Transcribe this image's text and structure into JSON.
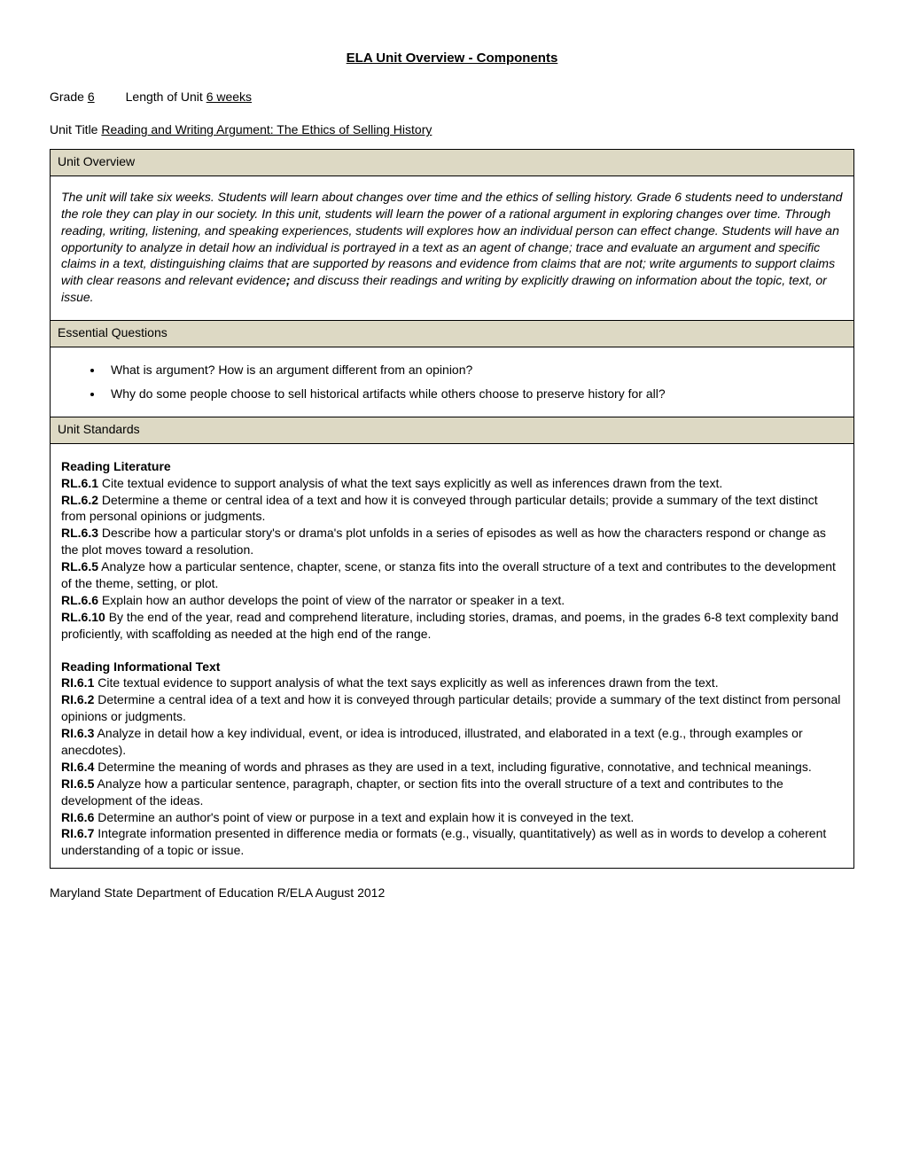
{
  "page_title": "ELA Unit Overview - Components",
  "meta": {
    "grade_label": "Grade",
    "grade_value": "6",
    "length_label": "Length of Unit",
    "length_value": "6 weeks",
    "unit_title_label": "Unit Title",
    "unit_title_value": "Reading and Writing Argument: The Ethics of Selling History"
  },
  "sections": {
    "overview_header": "Unit Overview",
    "overview_body_pre": "The unit will take six weeks. Students will learn about changes over time and the ethics of selling history.  Grade 6 students need to understand the role they can play in our society. In this unit, students will learn the power of a rational argument in exploring changes over time. Through reading, writing, listening, and speaking experiences, students will explores how an individual person can effect change.  Students will have an opportunity to analyze in detail how an individual is portrayed in a text as an agent of change; trace and evaluate an argument and specific claims in a text, distinguishing claims that are supported by reasons and evidence from claims that are not; write arguments to support claims with clear reasons and relevant evidence",
    "overview_body_bold": ";",
    "overview_body_post": " and discuss their readings and writing by explicitly drawing on information about the topic, text, or issue.",
    "eq_header": "Essential Questions",
    "eq_items": [
      "What is argument? How is an argument different from an opinion?",
      "Why do some people choose to sell historical artifacts while others choose to preserve history for all?"
    ],
    "standards_header": "Unit Standards",
    "standards_groups": [
      {
        "title": "Reading Literature",
        "items": [
          {
            "code": "RL.6.1",
            "text": " Cite textual evidence to support analysis of what the text says explicitly as well as inferences drawn from the text."
          },
          {
            "code": "RL.6.2",
            "text": " Determine a theme or central idea of a text and how it is conveyed through particular details; provide a summary of the text distinct from personal opinions or judgments."
          },
          {
            "code": "RL.6.3",
            "text": " Describe how a particular story's or drama's plot unfolds in a series of episodes as well as how the characters respond or change as the plot moves toward a resolution."
          },
          {
            "code": "RL.6.5",
            "text": " Analyze how a particular sentence, chapter, scene, or stanza fits into the overall structure of a text and contributes to the development of the theme, setting, or plot."
          },
          {
            "code": "RL.6.6",
            "text": " Explain how an author develops the point of view of the narrator or speaker in a text."
          },
          {
            "code": "RL.6.10",
            "text": " By the end of the year, read and comprehend literature, including stories, dramas, and poems, in the grades 6-8 text complexity band proficiently, with scaffolding as needed at the high end of the range."
          }
        ]
      },
      {
        "title": "Reading Informational Text",
        "items": [
          {
            "code": "RI.6.1",
            "text": " Cite textual evidence to support analysis of what the text says explicitly as well as inferences drawn from the text."
          },
          {
            "code": "RI.6.2",
            "text": " Determine a central idea of a text and how it is conveyed through particular details; provide a summary of the text distinct from personal opinions or judgments."
          },
          {
            "code": "RI.6.3",
            "text": " Analyze in detail how a key individual, event, or idea is introduced, illustrated, and elaborated in a text (e.g., through examples or anecdotes)."
          },
          {
            "code": "RI.6.4",
            "text": " Determine the meaning of words and phrases as they are used in a text, including figurative, connotative, and technical meanings."
          },
          {
            "code": "RI.6.5",
            "text": " Analyze how a particular sentence, paragraph, chapter, or section fits into the overall structure of a text and contributes to the development of the ideas."
          },
          {
            "code": "RI.6.6",
            "text": " Determine an author's point of view or purpose in a text and explain how it is conveyed in the text."
          },
          {
            "code": "RI.6.7",
            "text": " Integrate information presented in difference media or formats (e.g., visually, quantitatively) as well as in words to develop a coherent understanding of a topic or issue."
          }
        ]
      }
    ]
  },
  "footer": "Maryland State Department of Education R/ELA August 2012",
  "colors": {
    "section_header_bg": "#ddd9c4",
    "border": "#000000",
    "text": "#000000",
    "background": "#ffffff"
  }
}
